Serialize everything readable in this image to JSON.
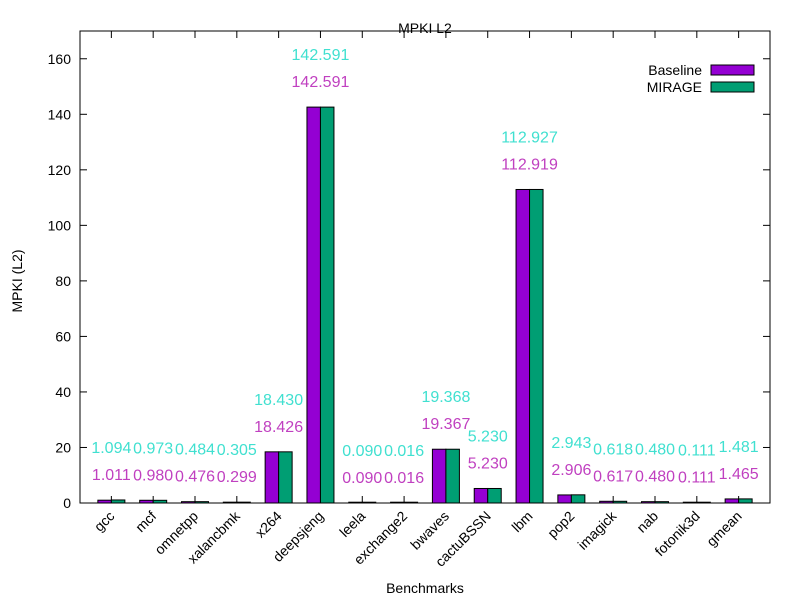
{
  "chart_data": {
    "type": "bar",
    "title": "MPKI L2",
    "xlabel": "Benchmarks",
    "ylabel": "MPKI (L2)",
    "ylim": [
      0,
      170
    ],
    "yticks": [
      0,
      20,
      40,
      60,
      80,
      100,
      120,
      140,
      160
    ],
    "legend_position": "top-right",
    "grid": false,
    "categories": [
      "gcc",
      "mcf",
      "omnetpp",
      "xalancbmk",
      "x264",
      "deepsjeng",
      "leela",
      "exchange2",
      "bwaves",
      "cactuBSSN",
      "lbm",
      "pop2",
      "imagick",
      "nab",
      "fotonik3d",
      "gmean"
    ],
    "series": [
      {
        "name": "Baseline",
        "color": "#9400d3",
        "label_color": "#c040c0",
        "values": [
          1.011,
          0.98,
          0.476,
          0.299,
          18.426,
          142.591,
          0.09,
          0.016,
          19.367,
          5.23,
          112.919,
          2.906,
          0.617,
          0.48,
          0.111,
          1.465
        ],
        "labels": [
          "1.011",
          "0.980",
          "0.476",
          "0.299",
          "18.426",
          "142.591",
          "0.090",
          "0.016",
          "19.367",
          "5.230",
          "112.919",
          "2.906",
          "0.617",
          "0.480",
          "0.111",
          "1.465"
        ]
      },
      {
        "name": "MIRAGE",
        "color": "#009e73",
        "label_color": "#40e0d0",
        "values": [
          1.094,
          0.973,
          0.484,
          0.305,
          18.43,
          142.591,
          0.09,
          0.016,
          19.368,
          5.23,
          112.927,
          2.943,
          0.618,
          0.48,
          0.111,
          1.481
        ],
        "labels": [
          "1.094",
          "0.973",
          "0.484",
          "0.305",
          "18.430",
          "142.591",
          "0.090",
          "0.016",
          "19.368",
          "5.230",
          "112.927",
          "2.943",
          "0.618",
          "0.480",
          "0.111",
          "1.481"
        ]
      }
    ]
  }
}
